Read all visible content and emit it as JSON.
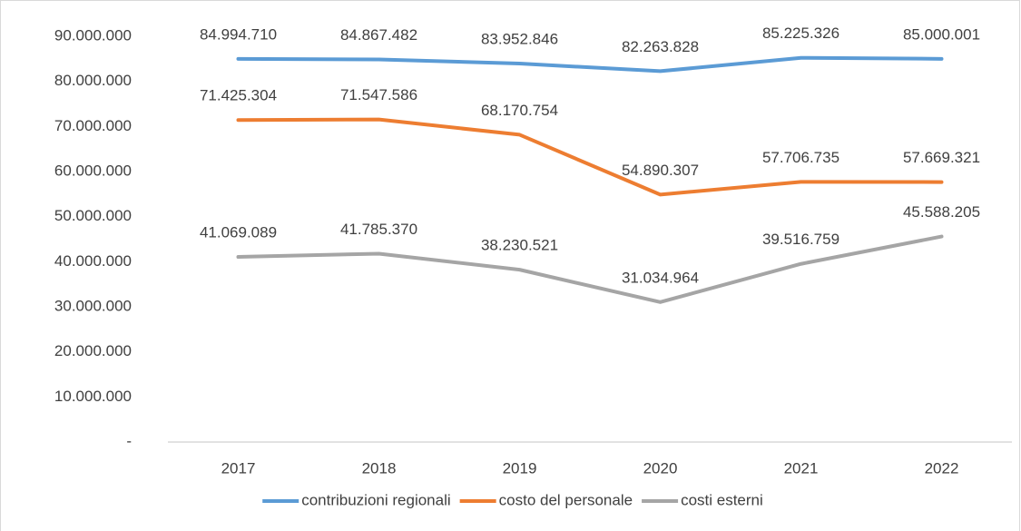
{
  "chart_data": {
    "type": "line",
    "categories": [
      "2017",
      "2018",
      "2019",
      "2020",
      "2021",
      "2022"
    ],
    "series": [
      {
        "name": "contribuzioni regionali",
        "color": "#5b9bd5",
        "values": [
          84994710,
          84867482,
          83952846,
          82263828,
          85225326,
          85000001
        ],
        "value_labels": [
          "84.994.710",
          "84.867.482",
          "83.952.846",
          "82.263.828",
          "85.225.326",
          "85.000.001"
        ]
      },
      {
        "name": "costo del personale",
        "color": "#ed7d31",
        "values": [
          71425304,
          71547586,
          68170754,
          54890307,
          57706735,
          57669321
        ],
        "value_labels": [
          "71.425.304",
          "71.547.586",
          "68.170.754",
          "54.890.307",
          "57.706.735",
          "57.669.321"
        ]
      },
      {
        "name": "costi esterni",
        "color": "#a5a5a5",
        "values": [
          41069089,
          41785370,
          38230521,
          31034964,
          39516759,
          45588205
        ],
        "value_labels": [
          "41.069.089",
          "41.785.370",
          "38.230.521",
          "31.034.964",
          "39.516.759",
          "45.588.205"
        ]
      }
    ],
    "ylim": [
      0,
      90000000
    ],
    "yticks": [
      {
        "value": 0,
        "label": "-"
      },
      {
        "value": 10000000,
        "label": "10.000.000"
      },
      {
        "value": 20000000,
        "label": "20.000.000"
      },
      {
        "value": 30000000,
        "label": "30.000.000"
      },
      {
        "value": 40000000,
        "label": "40.000.000"
      },
      {
        "value": 50000000,
        "label": "50.000.000"
      },
      {
        "value": 60000000,
        "label": "60.000.000"
      },
      {
        "value": 70000000,
        "label": "70.000.000"
      },
      {
        "value": 80000000,
        "label": "80.000.000"
      },
      {
        "value": 90000000,
        "label": "90.000.000"
      }
    ],
    "grid": false,
    "legend": "bottom"
  }
}
